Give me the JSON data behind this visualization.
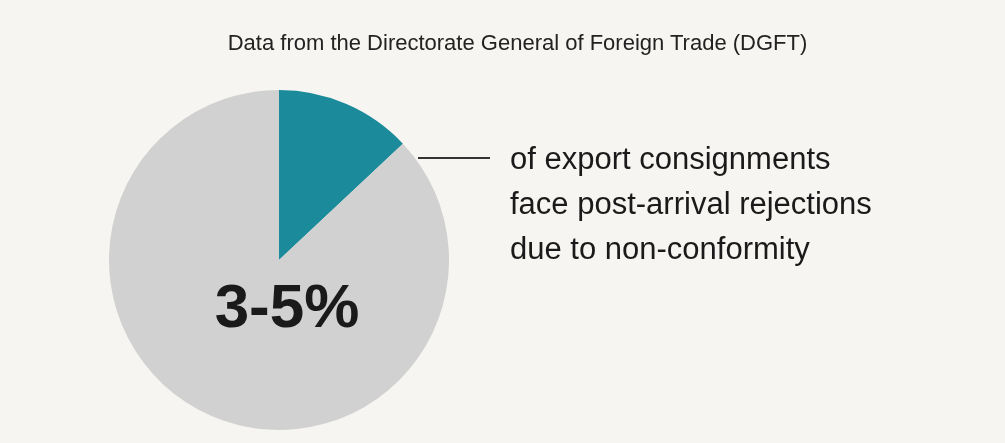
{
  "chart_data": {
    "type": "pie",
    "title": "Data from the Directorate General of Foreign Trade (DGFT)",
    "categories": [
      null,
      null
    ],
    "values": [
      13,
      87
    ],
    "colors": [
      "#1b8a9b",
      "#d1d1d1"
    ],
    "annotations": [
      "3-5%",
      "of export consignments\nface post-arrival rejections\ndue to non-conformity"
    ]
  }
}
